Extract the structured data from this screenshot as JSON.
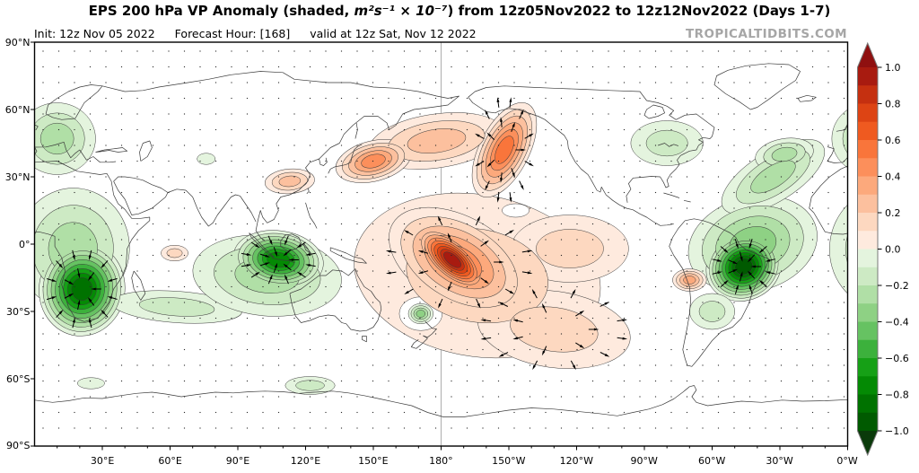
{
  "header": {
    "title_pre": "EPS 200 hPa VP Anomaly (shaded, ",
    "title_math": "m²s⁻¹ × 10⁻⁷",
    "title_post": ") from 12z05Nov2022 to 12z12Nov2022 (Days 1-7)",
    "init_label": "Init: 12z Nov 05 2022",
    "forecast_hour_label": "Forecast Hour: [168]",
    "valid_label": "valid at 12z Sat, Nov 12 2022",
    "watermark": "TROPICALTIDBITS.COM"
  },
  "axes": {
    "lat_ticks": [
      "90°N",
      "60°N",
      "30°N",
      "0°",
      "30°S",
      "60°S",
      "90°S"
    ],
    "lon_ticks": [
      "30°E",
      "60°E",
      "90°E",
      "120°E",
      "150°E",
      "180°",
      "150°W",
      "120°W",
      "90°W",
      "60°W",
      "30°W",
      "0°W"
    ]
  },
  "colorbar": {
    "tick_labels": [
      "1.0",
      "0.8",
      "0.6",
      "0.4",
      "0.2",
      "0.0",
      "−0.2",
      "−0.4",
      "−0.6",
      "−0.8",
      "−1.0"
    ],
    "positive_colors": [
      "#feeade",
      "#fdd8c0",
      "#fcc09e",
      "#fca97c",
      "#fc8f5b",
      "#f9753b",
      "#ef5a20",
      "#dd4414",
      "#c53010",
      "#a81b10"
    ],
    "negative_colors": [
      "#e4f4de",
      "#cdeac4",
      "#b0dfa6",
      "#8ed184",
      "#66c262",
      "#3cb13c",
      "#16a016",
      "#048a04",
      "#007200",
      "#005a00"
    ],
    "over_color": "#8f1010",
    "under_color": "#0a3a0a",
    "border_color": "#777777"
  },
  "chart_data": {
    "type": "heatmap",
    "title": "EPS 200 hPa Velocity Potential Anomaly, shaded",
    "units": "m²s⁻¹ × 10⁻⁷",
    "projection": "equirectangular",
    "lon_range": [
      0,
      360
    ],
    "lat_range": [
      -90,
      90
    ],
    "contour_min": -1.0,
    "contour_max": 1.0,
    "contour_interval": 0.1,
    "gridline_longitude": 180,
    "features": [
      {
        "name": "pacific-broad",
        "sign": 1,
        "lon": 196,
        "lat": -14,
        "rx_deg": 55,
        "ry_deg": 36,
        "rot_deg": 10,
        "peak": 0.2
      },
      {
        "name": "pacific-mid",
        "sign": 1,
        "lon": 188,
        "lat": -8,
        "rx_deg": 34,
        "ry_deg": 20,
        "rot_deg": 30,
        "peak": 0.5,
        "vectors": true
      },
      {
        "name": "pacific-core",
        "sign": 1,
        "lon": 185,
        "lat": -7,
        "rx_deg": 20,
        "ry_deg": 9.5,
        "rot_deg": 40,
        "peak": 1.0
      },
      {
        "name": "south-pacific",
        "sign": 1,
        "lon": 230,
        "lat": -38,
        "rx_deg": 34,
        "ry_deg": 17,
        "rot_deg": 8,
        "peak": 0.2,
        "vectors": true
      },
      {
        "name": "east-pacific-eq",
        "sign": 1,
        "lon": 237,
        "lat": -2,
        "rx_deg": 26,
        "ry_deg": 15,
        "rot_deg": 0,
        "peak": 0.2
      },
      {
        "name": "npac-bridge",
        "sign": 1,
        "lon": 178,
        "lat": 46,
        "rx_deg": 30,
        "ry_deg": 12,
        "rot_deg": -8,
        "peak": 0.3
      },
      {
        "name": "japan-arm",
        "sign": 1,
        "lon": 150,
        "lat": 37,
        "rx_deg": 17,
        "ry_deg": 9,
        "rot_deg": -14,
        "peak": 0.5
      },
      {
        "name": "alaska-arm",
        "sign": 1,
        "lon": 208,
        "lat": 42,
        "rx_deg": 11,
        "ry_deg": 23,
        "rot_deg": 27,
        "peak": 0.6,
        "vectors": true
      },
      {
        "name": "china-blob",
        "sign": 1,
        "lon": 113,
        "lat": 28,
        "rx_deg": 11,
        "ry_deg": 5.5,
        "rot_deg": -5,
        "peak": 0.3
      },
      {
        "name": "indian-ocean-spot",
        "sign": 1,
        "lon": 62,
        "lat": -4,
        "rx_deg": 6,
        "ry_deg": 3.5,
        "rot_deg": 0,
        "peak": 0.2
      },
      {
        "name": "europe",
        "sign": -1,
        "lon": 10,
        "lat": 47,
        "rx_deg": 17,
        "ry_deg": 16,
        "rot_deg": 0,
        "peak": -0.3,
        "wrap": true
      },
      {
        "name": "africa-broad",
        "sign": -1,
        "lon": 17,
        "lat": -2,
        "rx_deg": 25,
        "ry_deg": 27,
        "rot_deg": 5,
        "peak": -0.3,
        "wrap": true
      },
      {
        "name": "africa-main",
        "sign": -1,
        "lon": 21,
        "lat": -20,
        "rx_deg": 19,
        "ry_deg": 21,
        "rot_deg": 8,
        "peak": -0.9,
        "vectors": true
      },
      {
        "name": "indian-ocean-band",
        "sign": -1,
        "lon": 63,
        "lat": -28,
        "rx_deg": 29,
        "ry_deg": 7,
        "rot_deg": 4,
        "peak": -0.2
      },
      {
        "name": "maritime-broad",
        "sign": -1,
        "lon": 103,
        "lat": -14,
        "rx_deg": 33,
        "ry_deg": 18,
        "rot_deg": 5,
        "peak": -0.3
      },
      {
        "name": "maritime-main",
        "sign": -1,
        "lon": 108,
        "lat": -7,
        "rx_deg": 20,
        "ry_deg": 13,
        "rot_deg": 8,
        "peak": -0.8,
        "vectors": true
      },
      {
        "name": "central-asia-spot",
        "sign": -1,
        "lon": 76,
        "lat": 38,
        "rx_deg": 4,
        "ry_deg": 2.5,
        "rot_deg": 0,
        "peak": -0.1
      },
      {
        "name": "atlantic-broad",
        "sign": -1,
        "lon": 318,
        "lat": 0,
        "rx_deg": 29,
        "ry_deg": 21,
        "rot_deg": -15,
        "peak": -0.4
      },
      {
        "name": "south-america-main",
        "sign": -1,
        "lon": 314,
        "lat": -10,
        "rx_deg": 17,
        "ry_deg": 15,
        "rot_deg": -25,
        "peak": -1.0,
        "vectors": true
      },
      {
        "name": "atlantic-arm",
        "sign": -1,
        "lon": 327,
        "lat": 30,
        "rx_deg": 26,
        "ry_deg": 11,
        "rot_deg": -32,
        "peak": -0.3
      },
      {
        "name": "north-atlantic-blob",
        "sign": -1,
        "lon": 332,
        "lat": 40,
        "rx_deg": 13,
        "ry_deg": 7,
        "rot_deg": -10,
        "peak": -0.3
      },
      {
        "name": "north-america-light",
        "sign": -1,
        "lon": 280,
        "lat": 45,
        "rx_deg": 16,
        "ry_deg": 10,
        "rot_deg": 0,
        "peak": -0.2
      },
      {
        "name": "south-america-south",
        "sign": -1,
        "lon": 300,
        "lat": -30,
        "rx_deg": 10,
        "ry_deg": 8,
        "rot_deg": 0,
        "peak": -0.2
      },
      {
        "name": "antarctic-spot-1",
        "sign": -1,
        "lon": 25,
        "lat": -62,
        "rx_deg": 6,
        "ry_deg": 2.5,
        "rot_deg": 0,
        "peak": -0.1
      },
      {
        "name": "antarctic-spot-2",
        "sign": -1,
        "lon": 122,
        "lat": -63,
        "rx_deg": 11,
        "ry_deg": 4,
        "rot_deg": 0,
        "peak": -0.2
      },
      {
        "name": "se-pacific-spot",
        "sign": 1,
        "lon": 290,
        "lat": -16,
        "rx_deg": 7.5,
        "ry_deg": 5,
        "rot_deg": 0,
        "peak": 0.4
      },
      {
        "name": "white-hole-sw-pacific",
        "sign": 0,
        "lon": 235,
        "lat": -43,
        "rx_deg": 8,
        "ry_deg": 4,
        "rot_deg": 0,
        "peak": 0
      },
      {
        "name": "white-hole-ne-pacific",
        "sign": 0,
        "lon": 213,
        "lat": 15,
        "rx_deg": 6,
        "ry_deg": 3,
        "rot_deg": 0,
        "peak": 0
      },
      {
        "name": "white-ring-nz",
        "sign": 0,
        "lon": 171,
        "lat": -31,
        "rx_deg": 9.5,
        "ry_deg": 7.5,
        "rot_deg": 0,
        "peak": 0
      },
      {
        "name": "new-zealand-spot",
        "sign": -1,
        "lon": 171,
        "lat": -31,
        "rx_deg": 5.5,
        "ry_deg": 4.5,
        "rot_deg": 0,
        "peak": -0.4
      }
    ]
  }
}
